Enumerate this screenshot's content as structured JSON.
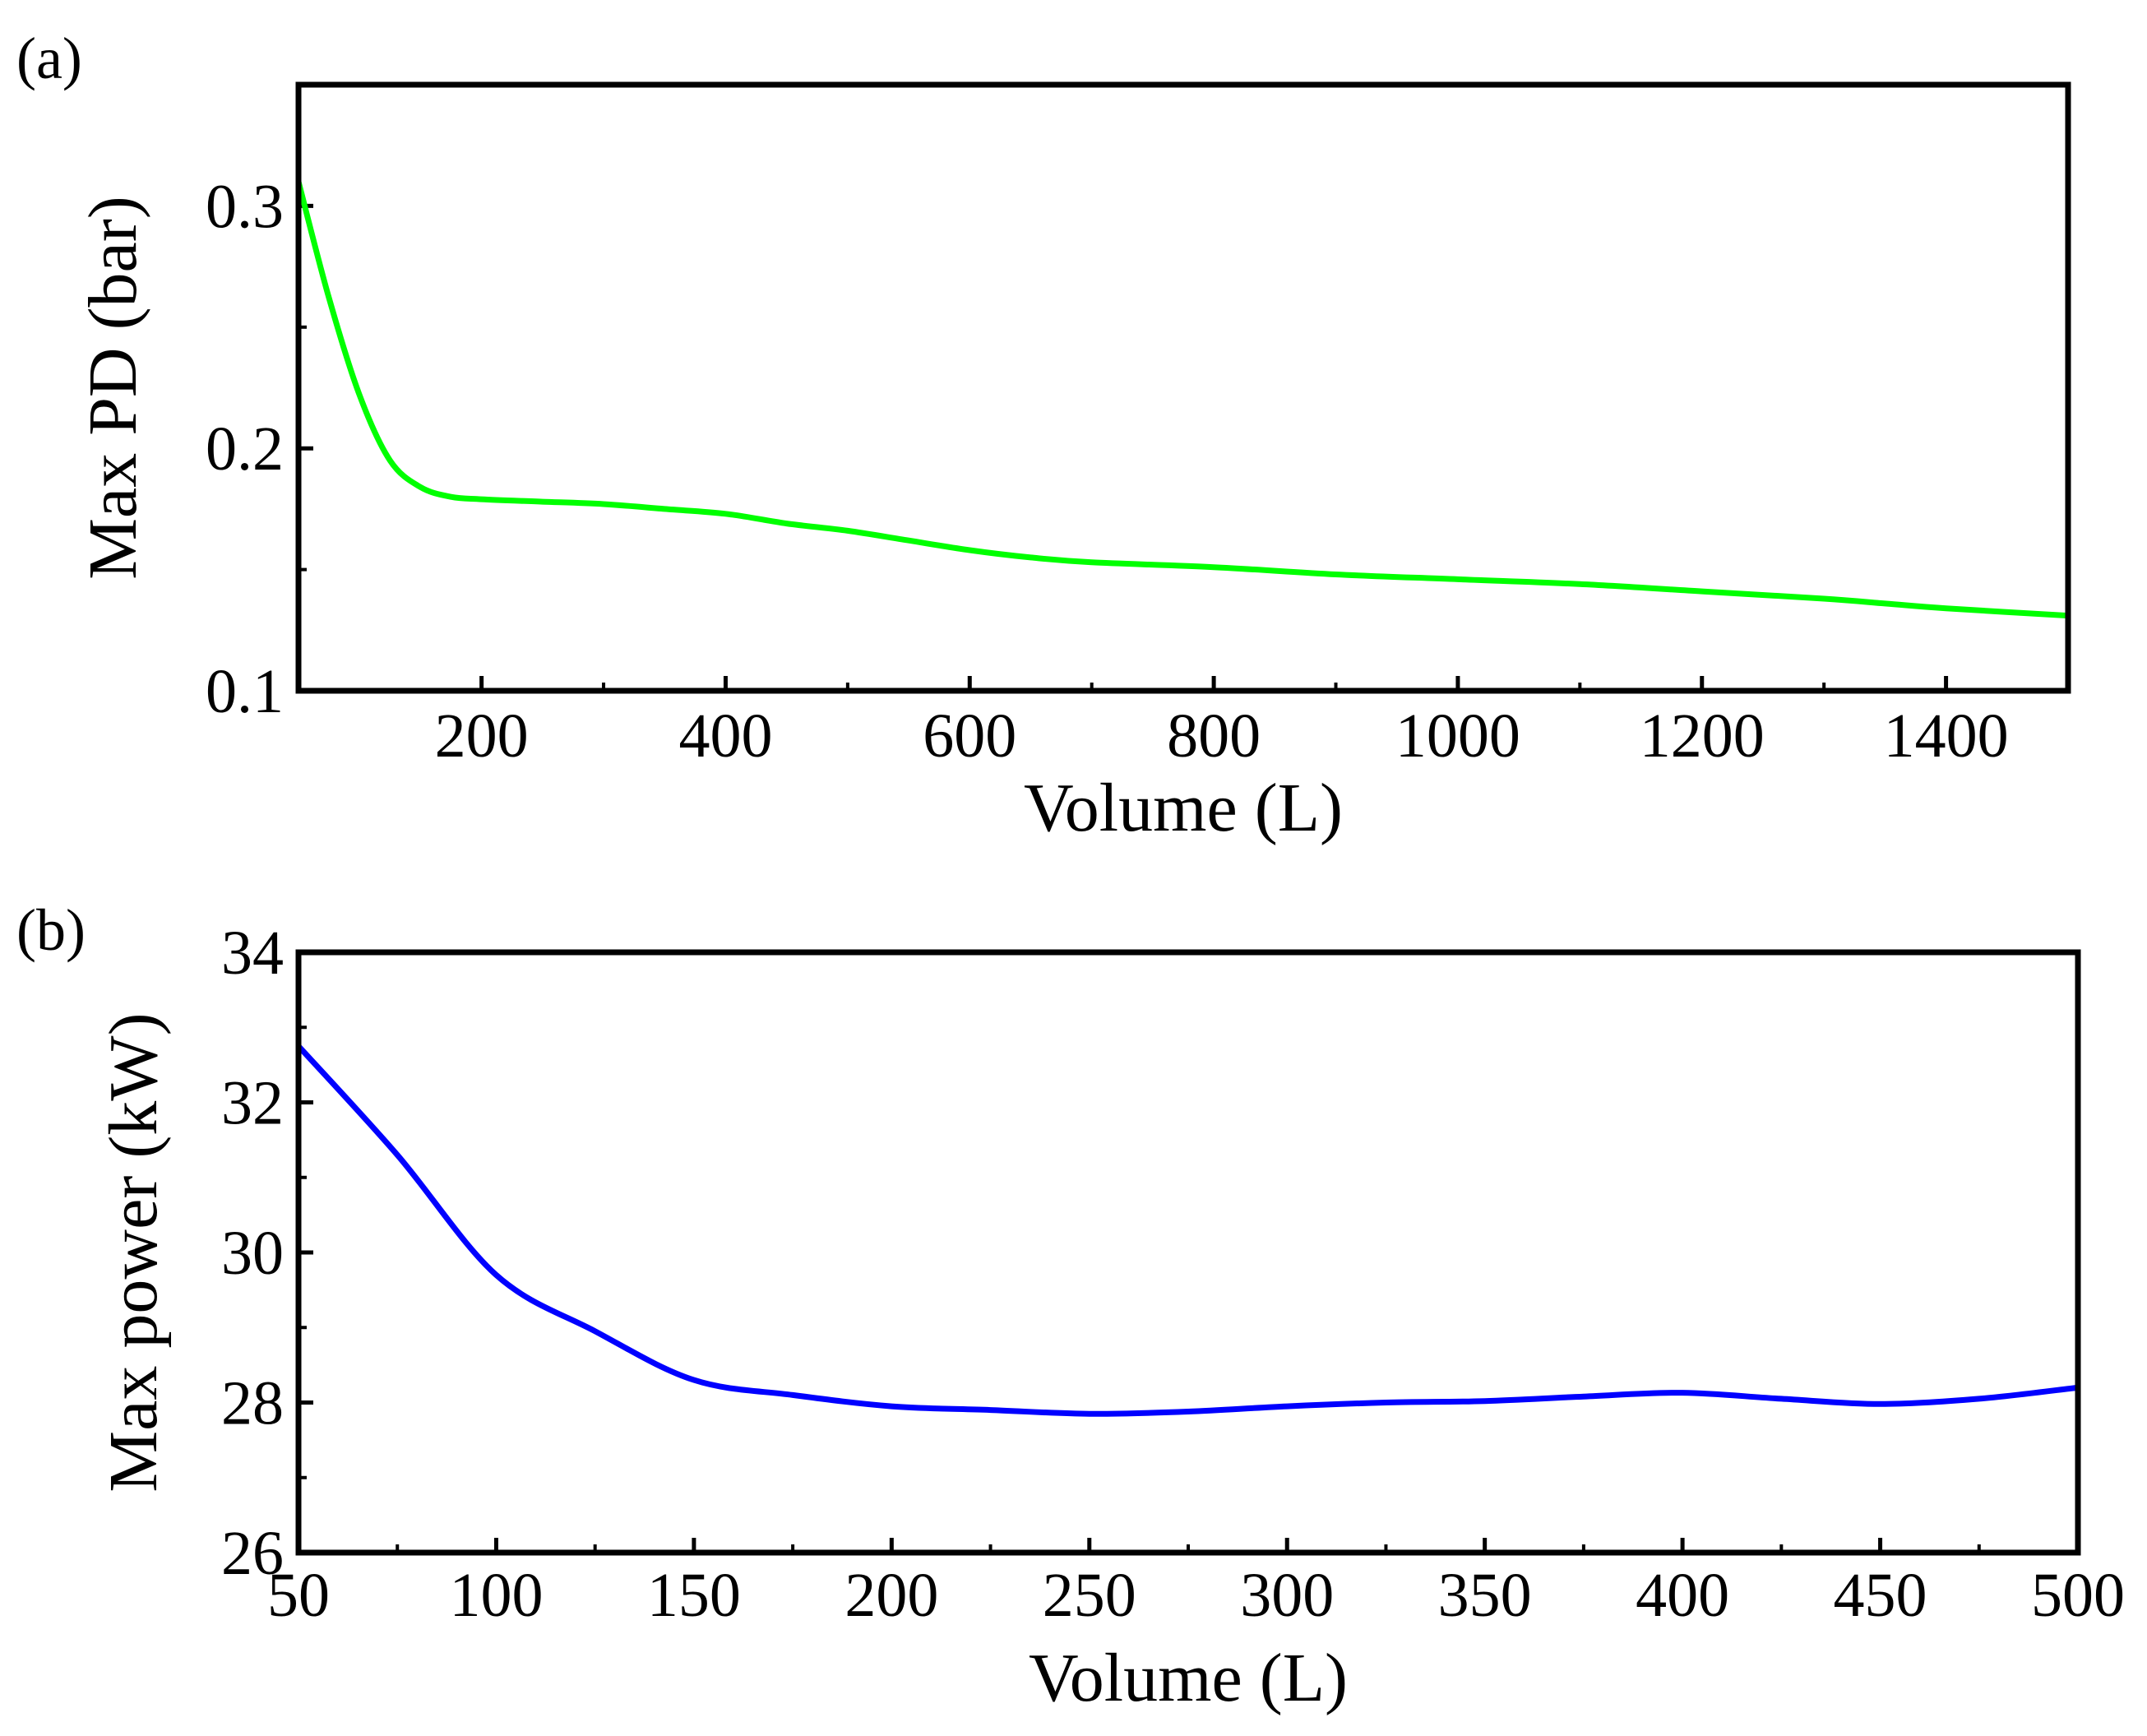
{
  "chart_data": [
    {
      "type": "line",
      "panel_label": "(a)",
      "xlabel": "Volume (L)",
      "ylabel": "Max PD (bar)",
      "xlim": [
        50,
        1500
      ],
      "ylim": [
        0.1,
        0.35
      ],
      "xticks": [
        200,
        400,
        600,
        800,
        1000,
        1200,
        1400
      ],
      "xtick_labels": [
        "200",
        "400",
        "600",
        "800",
        "1000",
        "1200",
        "1400"
      ],
      "yticks": [
        0.1,
        0.2,
        0.3
      ],
      "ytick_labels": [
        "0.1",
        "0.2",
        "0.3"
      ],
      "yminor": [
        0.15,
        0.25
      ],
      "grid": false,
      "series": [
        {
          "name": "Max PD",
          "color": "#00ff00",
          "x": [
            50,
            75,
            100,
            125,
            150,
            175,
            200,
            250,
            300,
            350,
            400,
            450,
            500,
            550,
            600,
            650,
            700,
            800,
            900,
            1000,
            1100,
            1200,
            1300,
            1350,
            1400,
            1500
          ],
          "y": [
            0.31,
            0.262,
            0.222,
            0.195,
            0.184,
            0.18,
            0.179,
            0.178,
            0.177,
            0.175,
            0.173,
            0.169,
            0.166,
            0.162,
            0.158,
            0.155,
            0.153,
            0.151,
            0.148,
            0.146,
            0.144,
            0.141,
            0.138,
            0.136,
            0.134,
            0.131
          ]
        }
      ]
    },
    {
      "type": "line",
      "panel_label": "(b)",
      "xlabel": "Volume (L)",
      "ylabel": "Max power (kW)",
      "xlim": [
        50,
        500
      ],
      "ylim": [
        26,
        34
      ],
      "xticks": [
        50,
        100,
        150,
        200,
        250,
        300,
        350,
        400,
        450,
        500
      ],
      "xtick_labels": [
        "50",
        "100",
        "150",
        "200",
        "250",
        "300",
        "350",
        "400",
        "450",
        "500"
      ],
      "yticks": [
        26,
        28,
        30,
        32,
        34
      ],
      "ytick_labels": [
        "26",
        "28",
        "30",
        "32",
        "34"
      ],
      "yminor": [
        27,
        29,
        31,
        33
      ],
      "grid": false,
      "series": [
        {
          "name": "Max power",
          "color": "#0000ff",
          "x": [
            50,
            75,
            100,
            125,
            150,
            175,
            200,
            225,
            250,
            275,
            300,
            325,
            350,
            375,
            400,
            425,
            450,
            475,
            500
          ],
          "y": [
            32.75,
            31.3,
            29.7,
            28.95,
            28.3,
            28.1,
            27.95,
            27.9,
            27.85,
            27.88,
            27.95,
            28.0,
            28.02,
            28.08,
            28.13,
            28.05,
            27.98,
            28.05,
            28.2
          ]
        }
      ]
    }
  ]
}
